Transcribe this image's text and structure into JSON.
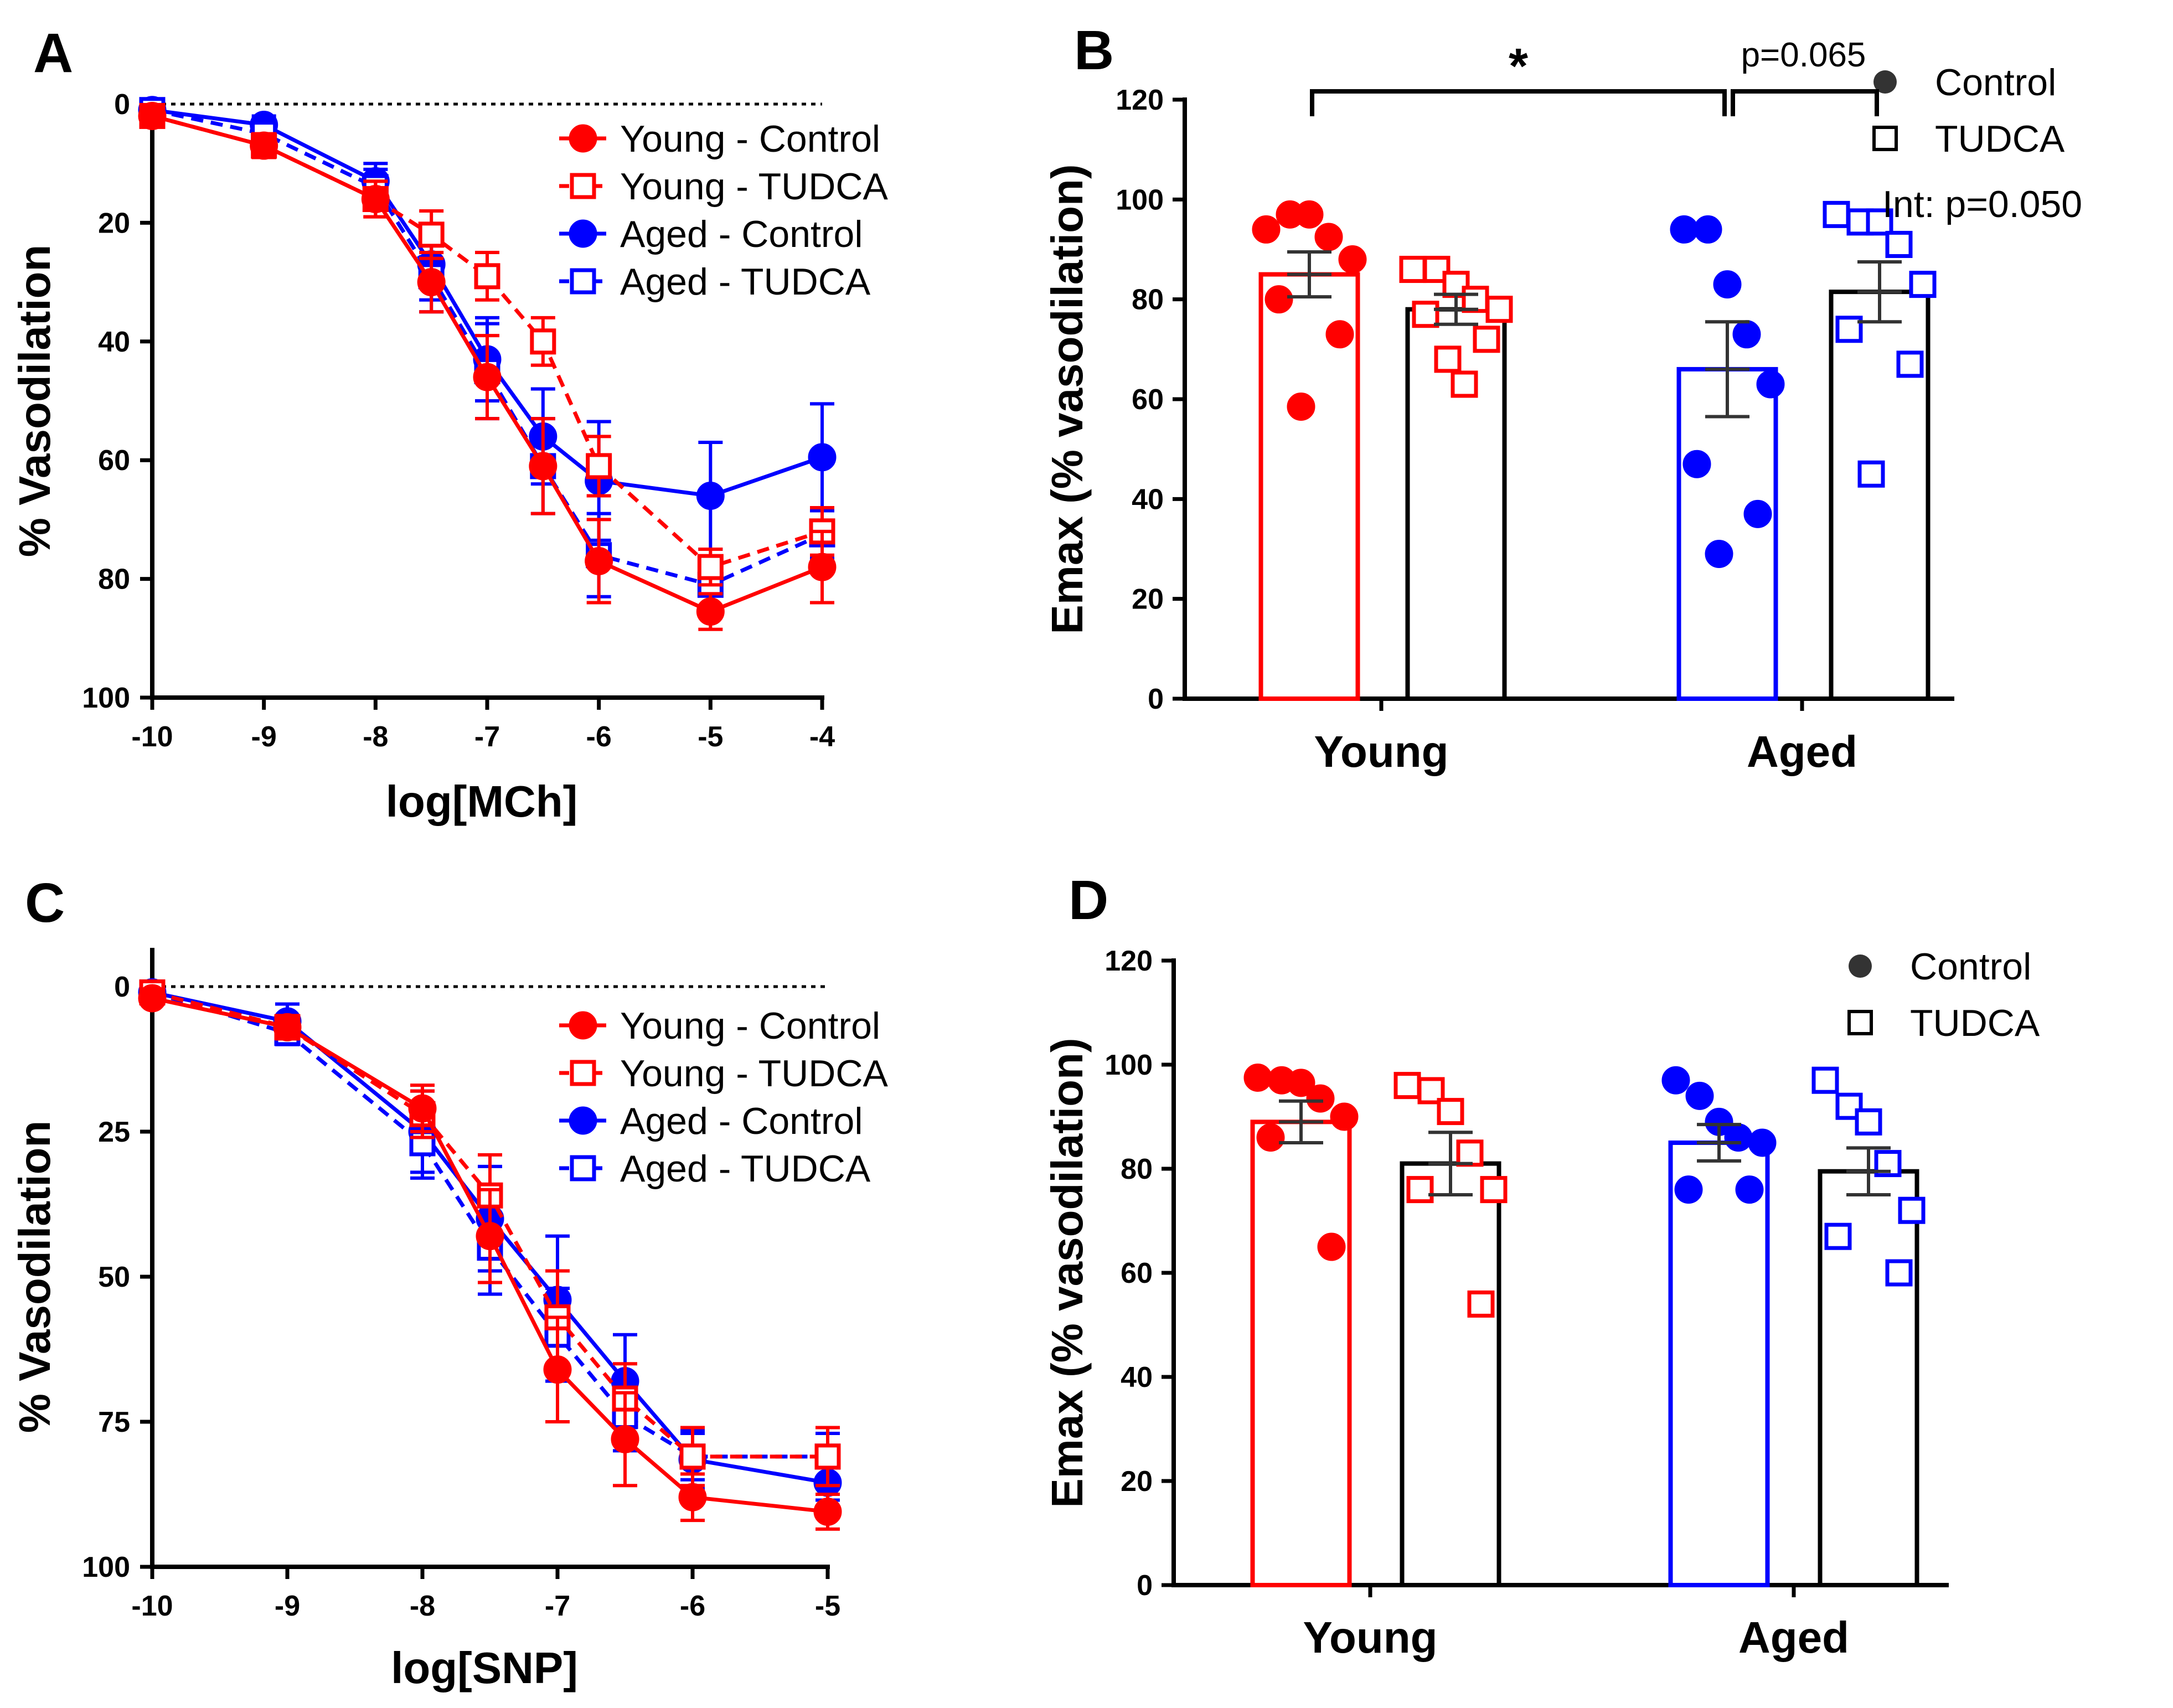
{
  "colors": {
    "young": "#ff0000",
    "aged": "#0000ff",
    "black": "#000000",
    "tudca_bar": "#000000"
  },
  "chart_data": [
    {
      "panel": "A",
      "type": "line",
      "xlabel": "log[MCh]",
      "ylabel": "% Vasodilation",
      "xlim": [
        -10,
        -4
      ],
      "ylim": [
        0,
        100
      ],
      "y_inverted": true,
      "xticks": [
        "-10",
        "-9",
        "-8",
        "-7",
        "-6",
        "-5",
        "-4"
      ],
      "yticks": [
        "0",
        "20",
        "40",
        "60",
        "80",
        "100"
      ],
      "x": [
        -10,
        -9,
        -8,
        -7.5,
        -7,
        -6.5,
        -6,
        -5,
        -4
      ],
      "series": [
        {
          "name": "Young - Control",
          "color": "young",
          "marker": "circle",
          "dashed": false,
          "values": [
            2,
            7,
            16,
            30,
            46,
            61,
            77,
            85.5,
            78
          ],
          "err": [
            1,
            2,
            3,
            5,
            7,
            8,
            7,
            3,
            6
          ]
        },
        {
          "name": "Young - TUDCA",
          "color": "young",
          "marker": "square",
          "dashed": true,
          "values": [
            2,
            7,
            16,
            22,
            29,
            40,
            61,
            78,
            72
          ],
          "err": [
            1,
            2,
            3,
            4,
            4,
            4,
            5,
            3,
            4
          ]
        },
        {
          "name": "Aged - Control",
          "color": "aged",
          "marker": "circle",
          "dashed": false,
          "values": [
            1,
            3.5,
            13,
            27,
            43,
            56,
            63.5,
            66,
            59.5
          ],
          "err": [
            1,
            1.5,
            3,
            6,
            7,
            8,
            10,
            9,
            9
          ]
        },
        {
          "name": "Aged - TUDCA",
          "color": "aged",
          "marker": "square",
          "dashed": true,
          "values": [
            1,
            5,
            14,
            29,
            45,
            61,
            76,
            81,
            72.5
          ],
          "err": [
            1,
            1.5,
            3,
            6,
            8,
            8,
            7,
            4,
            4
          ]
        }
      ]
    },
    {
      "panel": "B",
      "type": "bar",
      "ylabel": "Emax (% vasodilation)",
      "ylim": [
        0,
        120
      ],
      "yticks": [
        "0",
        "20",
        "40",
        "60",
        "80",
        "100",
        "120"
      ],
      "categories": [
        "Young",
        "Aged"
      ],
      "legend": [
        "Control",
        "TUDCA"
      ],
      "interaction": "Int: p=0.050",
      "sig_star": "*",
      "p_label": "p=0.065",
      "bars": [
        {
          "group": "Young",
          "treatment": "Control",
          "color": "young",
          "mean": 85,
          "sem": 4.5,
          "points": [
            94,
            97,
            97,
            92.5,
            88,
            80,
            73,
            58.5
          ]
        },
        {
          "group": "Young",
          "treatment": "TUDCA",
          "color": "tudca_bar",
          "point_color": "young",
          "mean": 78,
          "sem": 3,
          "points": [
            86,
            86,
            83,
            80,
            78,
            77,
            72,
            68,
            63
          ]
        },
        {
          "group": "Aged",
          "treatment": "Control",
          "color": "aged",
          "mean": 66,
          "sem": 9.5,
          "points": [
            94,
            94,
            83,
            73,
            63,
            47,
            37,
            29
          ]
        },
        {
          "group": "Aged",
          "treatment": "TUDCA",
          "color": "tudca_bar",
          "point_color": "aged",
          "mean": 81.5,
          "sem": 6,
          "points": [
            97,
            95.5,
            95.5,
            91,
            83,
            74,
            67,
            45
          ]
        }
      ]
    },
    {
      "panel": "C",
      "type": "line",
      "xlabel": "log[SNP]",
      "ylabel": "% Vasodilation",
      "xlim": [
        -10,
        -5
      ],
      "ylim": [
        0,
        100
      ],
      "y_inverted": true,
      "xticks": [
        "-10",
        "-9",
        "-8",
        "-7",
        "-6",
        "-5"
      ],
      "yticks": [
        "0",
        "25",
        "50",
        "75",
        "100"
      ],
      "x": [
        -10,
        -9,
        -8,
        -7.5,
        -7,
        -6.5,
        -6,
        -5
      ],
      "series": [
        {
          "name": "Young - Control",
          "color": "young",
          "marker": "circle",
          "dashed": false,
          "values": [
            2,
            7,
            21,
            43,
            66,
            78,
            88,
            90.5
          ],
          "err": [
            1,
            2,
            4,
            8,
            9,
            8,
            4,
            3
          ]
        },
        {
          "name": "Young - TUDCA",
          "color": "young",
          "marker": "square",
          "dashed": true,
          "values": [
            1,
            7,
            22,
            36,
            57,
            71,
            81,
            81
          ],
          "err": [
            1,
            2,
            4,
            7,
            8,
            6,
            5,
            5
          ]
        },
        {
          "name": "Aged - Control",
          "color": "aged",
          "marker": "circle",
          "dashed": false,
          "values": [
            1,
            6,
            25,
            40,
            54,
            68,
            81.5,
            85.5
          ],
          "err": [
            1,
            3,
            7,
            9,
            11,
            8,
            5,
            3
          ]
        },
        {
          "name": "Aged - TUDCA",
          "color": "aged",
          "marker": "square",
          "dashed": true,
          "values": [
            1,
            8,
            27,
            45,
            60,
            74,
            81,
            81
          ],
          "err": [
            1,
            2,
            6,
            8,
            8,
            6,
            4,
            4
          ]
        }
      ]
    },
    {
      "panel": "D",
      "type": "bar",
      "ylabel": "Emax (% vasodilation)",
      "ylim": [
        0,
        120
      ],
      "yticks": [
        "0",
        "20",
        "40",
        "60",
        "80",
        "100",
        "120"
      ],
      "categories": [
        "Young",
        "Aged"
      ],
      "legend": [
        "Control",
        "TUDCA"
      ],
      "bars": [
        {
          "group": "Young",
          "treatment": "Control",
          "color": "young",
          "mean": 89,
          "sem": 4,
          "points": [
            97.5,
            97,
            96.5,
            93.5,
            90,
            86,
            65
          ]
        },
        {
          "group": "Young",
          "treatment": "TUDCA",
          "color": "tudca_bar",
          "point_color": "young",
          "mean": 81,
          "sem": 6,
          "points": [
            96,
            95,
            91,
            83,
            76,
            76,
            54
          ]
        },
        {
          "group": "Aged",
          "treatment": "Control",
          "color": "aged",
          "mean": 85,
          "sem": 3.5,
          "points": [
            97,
            94,
            89,
            86,
            85,
            76,
            76
          ]
        },
        {
          "group": "Aged",
          "treatment": "TUDCA",
          "color": "tudca_bar",
          "point_color": "aged",
          "mean": 79.5,
          "sem": 4.5,
          "points": [
            97,
            92,
            89,
            81,
            72,
            67,
            60
          ]
        }
      ]
    }
  ]
}
